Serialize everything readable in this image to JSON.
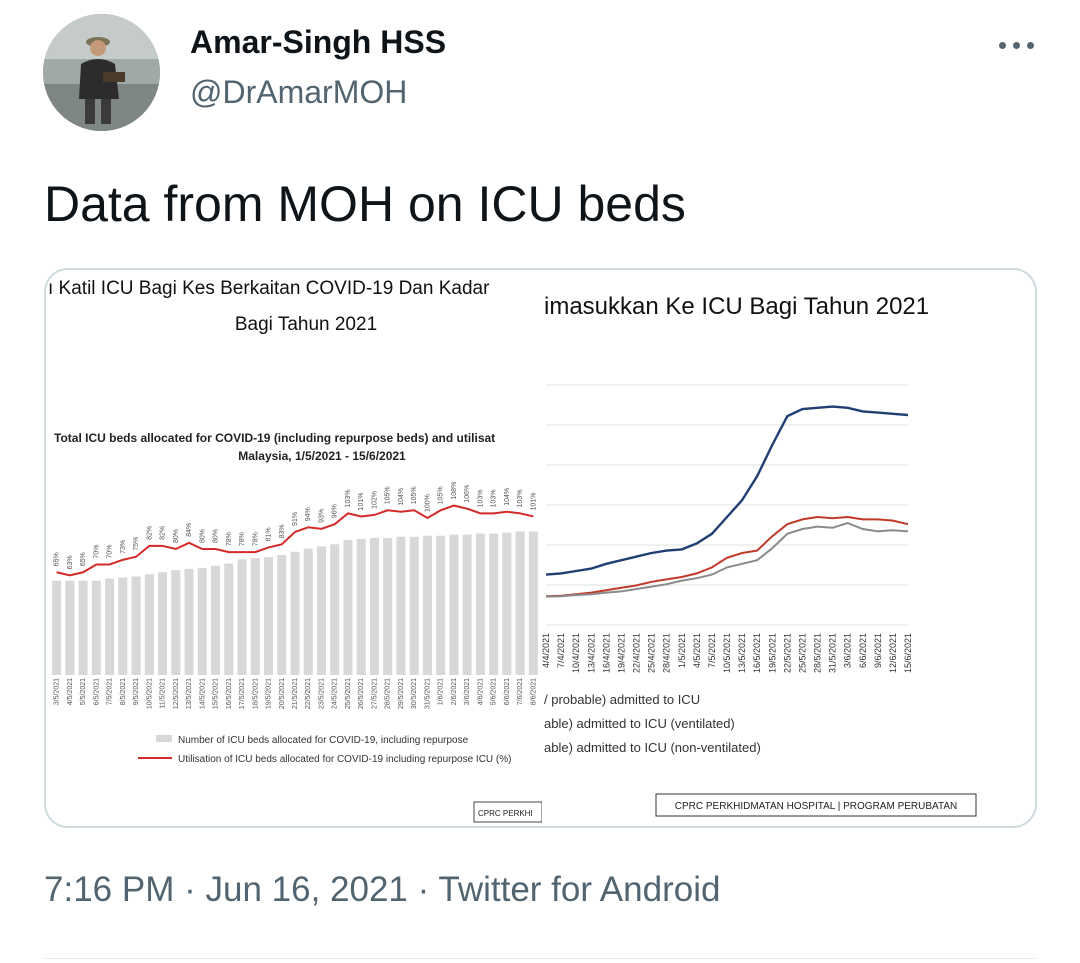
{
  "author": {
    "name": "Amar-Singh HSS",
    "handle": "@DrAmarMOH"
  },
  "tweet": {
    "text": "Data from MOH on ICU beds",
    "time": "7:16 PM",
    "date": "Jun 16, 2021",
    "source": "Twitter for Android",
    "separator": "·"
  },
  "icons": {
    "more": "more-horizontal-icon"
  },
  "colors": {
    "bars": "#d8d8d8",
    "util_line": "#d32a2a",
    "confirmed_line": "#1f3f73",
    "ventilated_line": "#c0392b",
    "nonventilated_line": "#8a8a8a"
  },
  "slide_left": {
    "header_line1": "ı Katil ICU Bagi Kes Berkaitan COVID-19 Dan Kadar",
    "header_line2": "Bagi Tahun 2021",
    "chart_title": "Total ICU beds allocated for COVID-19 (including repurpose beds) and utilisat",
    "chart_subtitle": "Malaysia, 1/5/2021 - 15/6/2021",
    "legend_bars": "Number of ICU beds allocated for COVID-19, including repurpose",
    "legend_line": "Utilisation of ICU beds allocated for COVID-19 including repurpose ICU (%)",
    "footer": "CPRC PERKHI"
  },
  "slide_right": {
    "header": "imasukkan Ke ICU Bagi Tahun 2021",
    "legend": [
      "/ probable) admitted to ICU",
      "able) admitted to ICU (ventilated)",
      "able) admitted to ICU (non-ventilated)"
    ],
    "footer": "CPRC PERKHIDMATAN HOSPITAL | PROGRAM PERUBATAN"
  },
  "chart_data": [
    {
      "type": "bar",
      "title": "Total ICU beds allocated for COVID-19 (including repurpose beds) and utilisat",
      "subtitle": "Malaysia, 1/5/2021 - 15/6/2021",
      "categories": [
        "3/5/2021",
        "4/5/2021",
        "5/5/2021",
        "6/5/2021",
        "7/5/2021",
        "8/5/2021",
        "9/5/2021",
        "10/5/2021",
        "11/5/2021",
        "12/5/2021",
        "13/5/2021",
        "14/5/2021",
        "15/5/2021",
        "16/5/2021",
        "17/5/2021",
        "18/5/2021",
        "19/5/2021",
        "20/5/2021",
        "21/5/2021",
        "22/5/2021",
        "23/5/2021",
        "24/5/2021",
        "25/5/2021",
        "26/5/2021",
        "27/5/2021",
        "28/5/2021",
        "29/5/2021",
        "30/5/2021",
        "31/5/2021",
        "1/6/2021",
        "2/6/2021",
        "3/6/2021",
        "4/6/2021",
        "5/6/2021",
        "6/6/2021",
        "7/6/2021",
        "8/6/2021"
      ],
      "series": [
        {
          "name": "Number of ICU beds allocated for COVID-19, including repurpose",
          "values": [
            440,
            440,
            440,
            440,
            450,
            455,
            460,
            470,
            480,
            490,
            495,
            500,
            510,
            520,
            540,
            545,
            550,
            560,
            575,
            590,
            600,
            610,
            630,
            635,
            640,
            640,
            645,
            645,
            650,
            650,
            655,
            655,
            660,
            660,
            665,
            670,
            670
          ]
        },
        {
          "name": "Utilisation of ICU beds allocated for COVID-19 including repurpose ICU (%)",
          "labels": [
            "65%",
            "63%",
            "65%",
            "70%",
            "70%",
            "73%",
            "75%",
            "82%",
            "82%",
            "80%",
            "84%",
            "80%",
            "80%",
            "78%",
            "78%",
            "78%",
            "81%",
            "83%",
            "91%",
            "94%",
            "93%",
            "96%",
            "103%",
            "101%",
            "102%",
            "105%",
            "104%",
            "105%",
            "100%",
            "105%",
            "108%",
            "106%",
            "103%",
            "103%",
            "104%",
            "103%",
            "101%"
          ],
          "values": [
            65,
            63,
            65,
            70,
            70,
            73,
            75,
            82,
            82,
            80,
            84,
            80,
            80,
            78,
            78,
            78,
            81,
            83,
            91,
            94,
            93,
            96,
            103,
            101,
            102,
            105,
            104,
            105,
            100,
            105,
            108,
            106,
            103,
            103,
            104,
            103,
            101
          ]
        }
      ]
    },
    {
      "type": "line",
      "title": "imasukkan Ke ICU Bagi Tahun 2021",
      "categories": [
        "4/4/2021",
        "7/4/2021",
        "10/4/2021",
        "13/4/2021",
        "16/4/2021",
        "19/4/2021",
        "22/4/2021",
        "25/4/2021",
        "28/4/2021",
        "1/5/2021",
        "4/5/2021",
        "7/5/2021",
        "10/5/2021",
        "13/5/2021",
        "16/5/2021",
        "19/5/2021",
        "22/5/2021",
        "25/5/2021",
        "28/5/2021",
        "31/5/2021",
        "3/6/2021",
        "6/6/2021",
        "9/6/2021",
        "12/6/2021",
        "15/6/2021"
      ],
      "series": [
        {
          "name": "/ probable) admitted to ICU",
          "values": [
            210,
            215,
            225,
            235,
            255,
            270,
            285,
            300,
            310,
            315,
            340,
            380,
            450,
            520,
            620,
            750,
            870,
            900,
            905,
            910,
            905,
            890,
            885,
            880,
            875
          ]
        },
        {
          "name": "able) admitted to ICU (ventilated)",
          "values": [
            120,
            122,
            128,
            135,
            145,
            155,
            165,
            180,
            190,
            200,
            215,
            240,
            280,
            300,
            310,
            370,
            420,
            440,
            450,
            445,
            450,
            440,
            440,
            435,
            420
          ]
        },
        {
          "name": "able) admitted to ICU (non-ventilated)",
          "values": [
            118,
            120,
            125,
            128,
            135,
            140,
            150,
            160,
            170,
            185,
            195,
            210,
            240,
            255,
            270,
            320,
            380,
            400,
            410,
            405,
            425,
            400,
            390,
            395,
            390
          ]
        }
      ],
      "grid": true
    }
  ]
}
